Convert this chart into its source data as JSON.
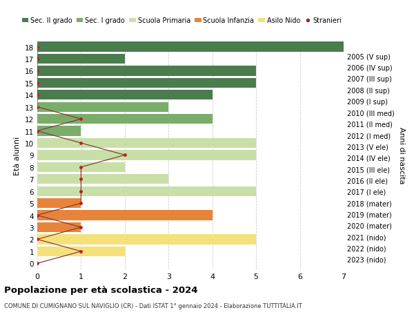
{
  "ages": [
    0,
    1,
    2,
    3,
    4,
    5,
    6,
    7,
    8,
    9,
    10,
    11,
    12,
    13,
    14,
    15,
    16,
    17,
    18
  ],
  "years": [
    "2023 (nido)",
    "2022 (nido)",
    "2021 (nido)",
    "2020 (mater)",
    "2019 (mater)",
    "2018 (mater)",
    "2017 (I ele)",
    "2016 (II ele)",
    "2015 (III ele)",
    "2014 (IV ele)",
    "2013 (V ele)",
    "2012 (I med)",
    "2011 (II med)",
    "2010 (III med)",
    "2009 (I sup)",
    "2008 (II sup)",
    "2007 (III sup)",
    "2006 (IV sup)",
    "2005 (V sup)"
  ],
  "bars": [
    0,
    2,
    5,
    1,
    4,
    1,
    5,
    3,
    2,
    5,
    5,
    1,
    4,
    3,
    4,
    5,
    5,
    2,
    7
  ],
  "bar_colors": [
    "#f5e17a",
    "#f5e17a",
    "#f5e17a",
    "#e8843a",
    "#e8843a",
    "#e8843a",
    "#c8dfa8",
    "#c8dfa8",
    "#c8dfa8",
    "#c8dfa8",
    "#c8dfa8",
    "#7aad6a",
    "#7aad6a",
    "#7aad6a",
    "#4a7c4e",
    "#4a7c4e",
    "#4a7c4e",
    "#4a7c4e",
    "#4a7c4e"
  ],
  "stranieri": [
    0,
    1,
    0,
    1,
    0,
    1,
    1,
    1,
    1,
    2,
    1,
    0,
    1,
    0,
    0,
    0,
    0,
    0,
    0
  ],
  "legend_labels": [
    "Sec. II grado",
    "Sec. I grado",
    "Scuola Primaria",
    "Scuola Infanzia",
    "Asilo Nido",
    "Stranieri"
  ],
  "legend_colors": [
    "#4a7c4e",
    "#7aad6a",
    "#c8dfa8",
    "#e8843a",
    "#f5e17a",
    "#b22222"
  ],
  "ylabel_left": "Età alunni",
  "ylabel_right": "Anni di nascita",
  "title": "Popolazione per età scolastica - 2024",
  "subtitle": "COMUNE DI CUMIGNANO SUL NAVIGLIO (CR) - Dati ISTAT 1° gennaio 2024 - Elaborazione TUTTITALIA.IT",
  "xlim": [
    0,
    7
  ],
  "bg_color": "#ffffff",
  "grid_color": "#cccccc",
  "stranieri_line_color": "#8b3a3a",
  "stranieri_dot_color": "#b22222"
}
